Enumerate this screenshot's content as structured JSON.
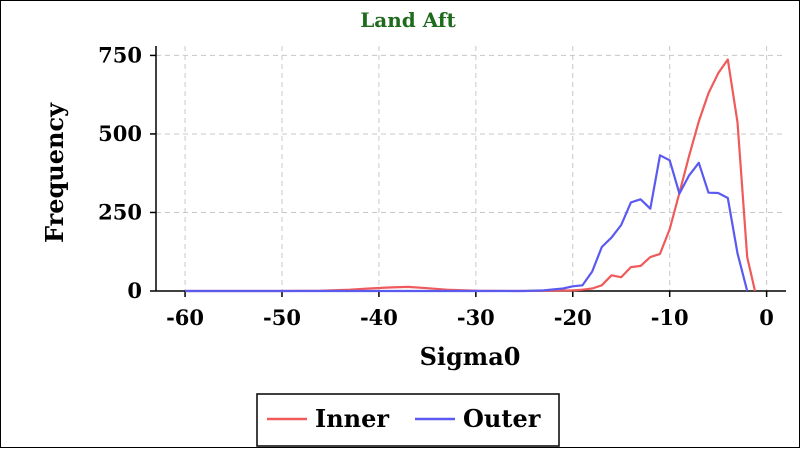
{
  "chart_data": {
    "type": "line",
    "title": "Land Aft",
    "xlabel": "Sigma0",
    "ylabel": "Frequency",
    "xlim": [
      -63,
      2
    ],
    "ylim": [
      0,
      780
    ],
    "xticks": [
      -60,
      -50,
      -40,
      -30,
      -20,
      -10,
      0
    ],
    "yticks": [
      0,
      250,
      500,
      750
    ],
    "grid": true,
    "legend_position": "bottom-center",
    "series": [
      {
        "name": "Inner",
        "color": "#f05a5a",
        "points": [
          [
            -60,
            0
          ],
          [
            -55,
            0
          ],
          [
            -50,
            0
          ],
          [
            -46,
            1
          ],
          [
            -43,
            4
          ],
          [
            -41,
            8
          ],
          [
            -39,
            11
          ],
          [
            -37,
            13
          ],
          [
            -35,
            9
          ],
          [
            -33,
            4
          ],
          [
            -30,
            1
          ],
          [
            -26,
            0
          ],
          [
            -22,
            1
          ],
          [
            -20,
            2
          ],
          [
            -19,
            4
          ],
          [
            -18,
            8
          ],
          [
            -17,
            18
          ],
          [
            -16,
            50
          ],
          [
            -15,
            44
          ],
          [
            -14,
            76
          ],
          [
            -13,
            80
          ],
          [
            -12,
            108
          ],
          [
            -11,
            118
          ],
          [
            -10,
            197
          ],
          [
            -9,
            312
          ],
          [
            -8,
            430
          ],
          [
            -7,
            540
          ],
          [
            -6,
            630
          ],
          [
            -5,
            693
          ],
          [
            -4,
            737
          ],
          [
            -3,
            537
          ],
          [
            -2,
            108
          ],
          [
            -1.2,
            0
          ]
        ]
      },
      {
        "name": "Outer",
        "color": "#5a5af0",
        "points": [
          [
            -60,
            0
          ],
          [
            -50,
            0
          ],
          [
            -40,
            0
          ],
          [
            -30,
            0
          ],
          [
            -25,
            0
          ],
          [
            -23,
            2
          ],
          [
            -21,
            8
          ],
          [
            -20,
            15
          ],
          [
            -19,
            18
          ],
          [
            -18,
            62
          ],
          [
            -17,
            140
          ],
          [
            -16,
            170
          ],
          [
            -15,
            210
          ],
          [
            -14,
            282
          ],
          [
            -13,
            292
          ],
          [
            -12,
            262
          ],
          [
            -11,
            432
          ],
          [
            -10,
            416
          ],
          [
            -9,
            310
          ],
          [
            -8,
            368
          ],
          [
            -7,
            408
          ],
          [
            -6,
            313
          ],
          [
            -5,
            312
          ],
          [
            -4,
            296
          ],
          [
            -3,
            120
          ],
          [
            -2,
            0
          ]
        ]
      }
    ]
  }
}
